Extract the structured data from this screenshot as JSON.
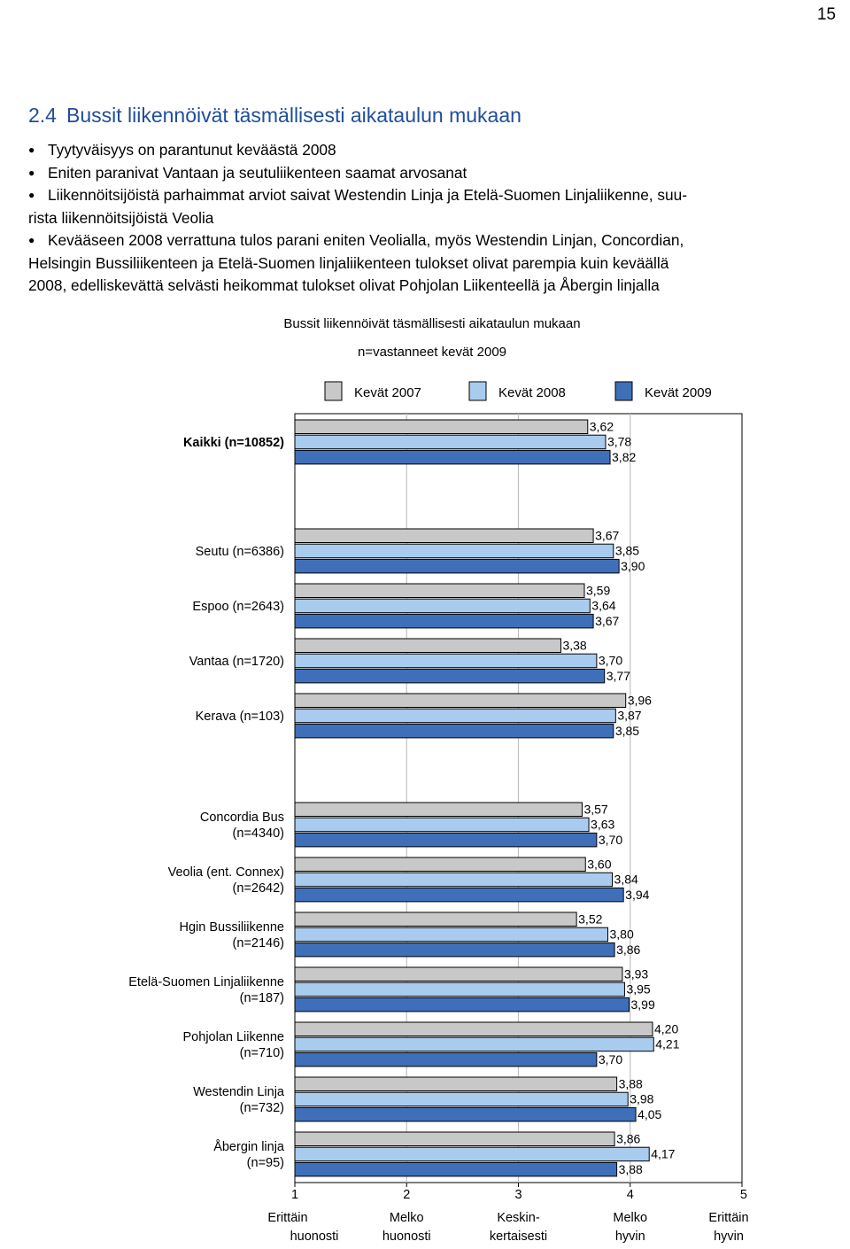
{
  "page": {
    "number": "15",
    "section_number": "2.4",
    "section_title": "Bussit liikennöivät täsmällisesti aikataulun mukaan",
    "bullets": [
      "Tyytyväisyys on parantunut keväästä 2008",
      "Eniten paranivat Vantaan ja seutuliikenteen saamat arvosanat",
      "Liikennöitsijöistä parhaimmat arviot saivat Westendin Linja ja Etelä-Suomen Linjaliikenne, suu-",
      "rista liikennöitsijöistä Veolia",
      "Kevääseen 2008 verrattuna tulos parani eniten Veolialla, myös Westendin Linjan, Concordian,",
      "Helsingin Bussiliikenteen ja Etelä-Suomen linjaliikenteen tulokset olivat parempia kuin keväällä",
      "2008, edelliskevättä selvästi heikommat tulokset olivat Pohjolan Liikenteellä ja Åbergin linjalla"
    ]
  },
  "chart_data": {
    "type": "bar",
    "orientation": "horizontal",
    "title": "Bussit liikennöivät täsmällisesti aikataulun mukaan",
    "subtitle": "n=vastanneet kevät 2009",
    "legend_position": "top",
    "xlim": [
      1,
      5
    ],
    "x_ticks": [
      {
        "value": 1,
        "label1": "1",
        "label2": "Erittäin",
        "label3": "huonosti"
      },
      {
        "value": 2,
        "label1": "2",
        "label2": "Melko",
        "label3": "huonosti"
      },
      {
        "value": 3,
        "label1": "3",
        "label2": "Keskin-",
        "label3": "kertaisesti"
      },
      {
        "value": 4,
        "label1": "4",
        "label2": "Melko",
        "label3": "hyvin"
      },
      {
        "value": 5,
        "label1": "5",
        "label2": "Erittäin",
        "label3": "hyvin"
      }
    ],
    "grid": true,
    "series": [
      {
        "name": "Kevät 2007",
        "color": "#c8c8c8"
      },
      {
        "name": "Kevät 2008",
        "color": "#a9cbee"
      },
      {
        "name": "Kevät 2009",
        "color": "#3f6fb9"
      }
    ],
    "categories": [
      {
        "label": [
          "Kaikki (n=10852)"
        ],
        "bold": true,
        "values": [
          3.62,
          3.78,
          3.82
        ],
        "labels": [
          "3,62",
          "3,78",
          "3,82"
        ]
      },
      {
        "label": [
          "Seutu (n=6386)"
        ],
        "values": [
          3.67,
          3.85,
          3.9
        ],
        "labels": [
          "3,67",
          "3,85",
          "3,90"
        ]
      },
      {
        "label": [
          "Espoo (n=2643)"
        ],
        "values": [
          3.59,
          3.64,
          3.67
        ],
        "labels": [
          "3,59",
          "3,64",
          "3,67"
        ]
      },
      {
        "label": [
          "Vantaa (n=1720)"
        ],
        "values": [
          3.38,
          3.7,
          3.77
        ],
        "labels": [
          "3,38",
          "3,70",
          "3,77"
        ]
      },
      {
        "label": [
          "Kerava (n=103)"
        ],
        "values": [
          3.96,
          3.87,
          3.85
        ],
        "labels": [
          "3,96",
          "3,87",
          "3,85"
        ]
      },
      {
        "label": [
          "Concordia Bus",
          "(n=4340)"
        ],
        "values": [
          3.57,
          3.63,
          3.7
        ],
        "labels": [
          "3,57",
          "3,63",
          "3,70"
        ]
      },
      {
        "label": [
          "Veolia (ent. Connex)",
          "(n=2642)"
        ],
        "values": [
          3.6,
          3.84,
          3.94
        ],
        "labels": [
          "3,60",
          "3,84",
          "3,94"
        ]
      },
      {
        "label": [
          "Hgin Bussiliikenne",
          "(n=2146)"
        ],
        "values": [
          3.52,
          3.8,
          3.86
        ],
        "labels": [
          "3,52",
          "3,80",
          "3,86"
        ]
      },
      {
        "label": [
          "Etelä-Suomen Linjaliikenne",
          "(n=187)"
        ],
        "values": [
          3.93,
          3.95,
          3.99
        ],
        "labels": [
          "3,93",
          "3,95",
          "3,99"
        ]
      },
      {
        "label": [
          "Pohjolan Liikenne",
          "(n=710)"
        ],
        "values": [
          4.2,
          4.21,
          3.7
        ],
        "labels": [
          "4,20",
          "4,21",
          "3,70"
        ]
      },
      {
        "label": [
          "Westendin Linja",
          "(n=732)"
        ],
        "values": [
          3.88,
          3.98,
          4.05
        ],
        "labels": [
          "3,88",
          "3,98",
          "4,05"
        ]
      },
      {
        "label": [
          "Åbergin linja",
          "(n=95)"
        ],
        "values": [
          3.86,
          4.17,
          3.88
        ],
        "labels": [
          "3,86",
          "4,17",
          "3,88"
        ]
      }
    ]
  }
}
